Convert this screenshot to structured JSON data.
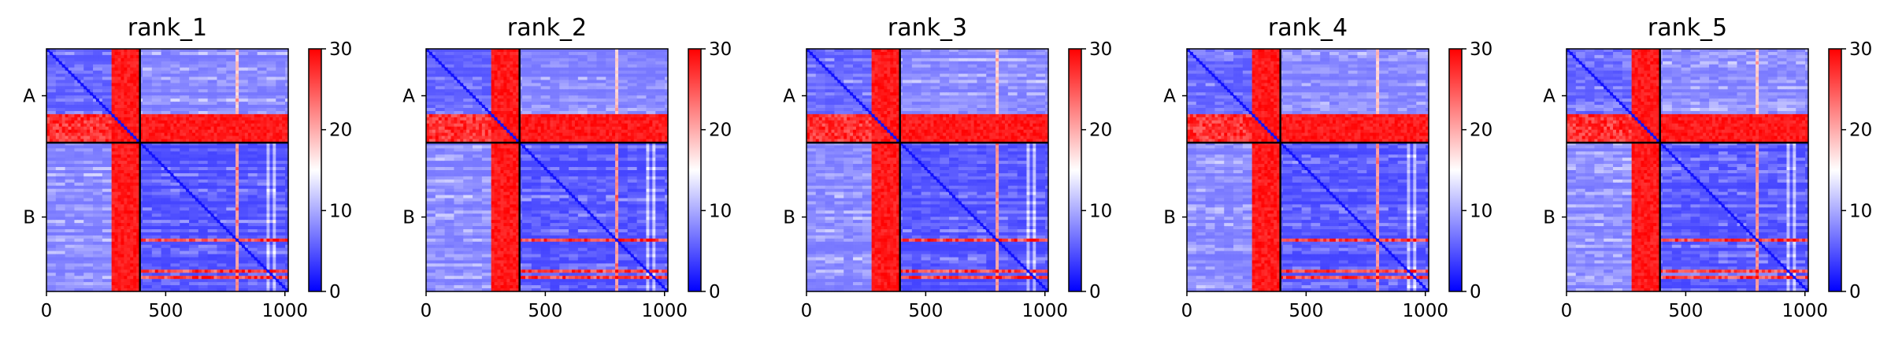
{
  "chart_data": {
    "type": "heatmap",
    "description_colormap": "bwr",
    "colors": {
      "low": "#0000ff",
      "mid": "#ffffff",
      "high": "#ff0000",
      "chain_separator": "#000000"
    },
    "value_range": [
      0,
      30
    ],
    "colorbar_ticks": [
      "0",
      "10",
      "20",
      "30"
    ],
    "x_ticks": [
      "0",
      "500",
      "1000"
    ],
    "x_tick_values": [
      0,
      500,
      1000
    ],
    "x_range": [
      0,
      1014
    ],
    "chain_labels": [
      "A",
      "B"
    ],
    "chain_boundary": 392,
    "total_residues": 1014,
    "grid": false,
    "panels": [
      {
        "title": "rank_1"
      },
      {
        "title": "rank_2"
      },
      {
        "title": "rank_3"
      },
      {
        "title": "rank_4"
      },
      {
        "title": "rank_5"
      }
    ]
  }
}
